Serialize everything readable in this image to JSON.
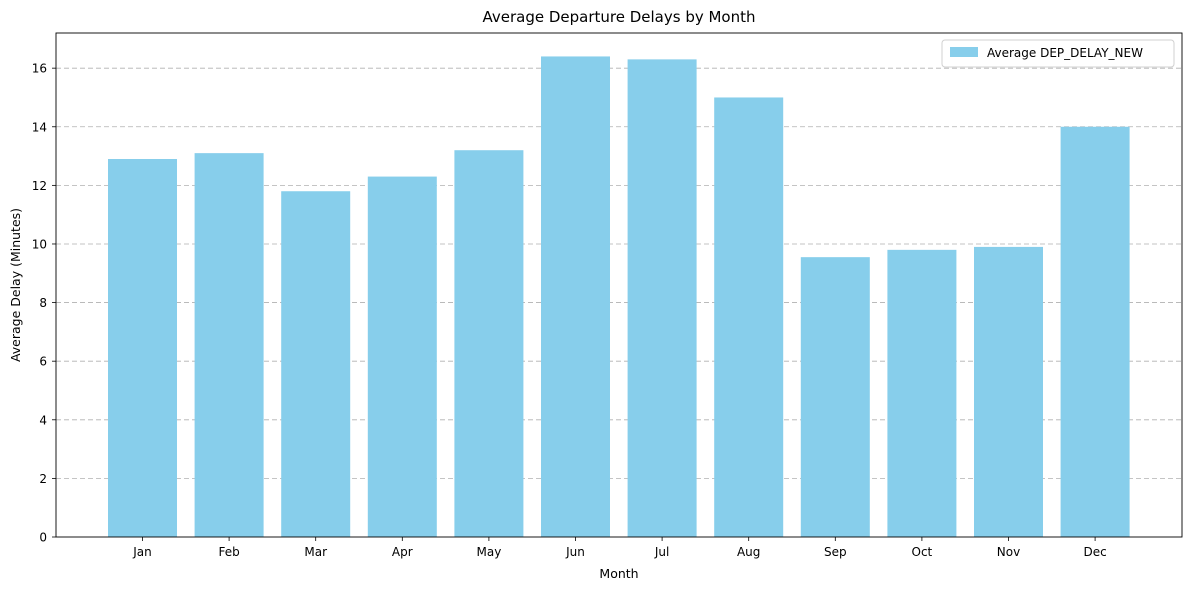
{
  "chart_data": {
    "type": "bar",
    "title": "Average Departure Delays by Month",
    "xlabel": "Month",
    "ylabel": "Average Delay (Minutes)",
    "categories": [
      "Jan",
      "Feb",
      "Mar",
      "Apr",
      "May",
      "Jun",
      "Jul",
      "Aug",
      "Sep",
      "Oct",
      "Nov",
      "Dec"
    ],
    "series": [
      {
        "name": "Average DEP_DELAY_NEW",
        "color": "#87CEEB",
        "values": [
          12.9,
          13.1,
          11.8,
          12.3,
          13.2,
          16.4,
          16.3,
          15.0,
          9.55,
          9.8,
          9.9,
          14.0
        ]
      }
    ],
    "ylim": [
      0,
      17.2
    ],
    "yticks": [
      0,
      2,
      4,
      6,
      8,
      10,
      12,
      14,
      16
    ],
    "grid": "y-dashed",
    "legend_position": "top-right"
  }
}
